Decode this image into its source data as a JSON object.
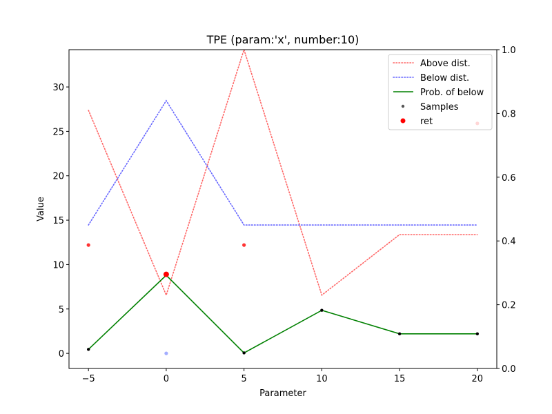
{
  "chart_data": {
    "type": "line",
    "title": "TPE (param:'x', number:10)",
    "xlabel": "Parameter",
    "ylabel": "Value",
    "xlim": [
      -6.25,
      21.25
    ],
    "ylim": [
      -1.7,
      34.2
    ],
    "y2lim": [
      0.0,
      1.0
    ],
    "x_ticks": [
      -5,
      0,
      5,
      10,
      15,
      20
    ],
    "y_ticks": [
      0,
      5,
      10,
      15,
      20,
      25,
      30
    ],
    "y2_ticks": [
      0.0,
      0.2,
      0.4,
      0.6,
      0.8,
      1.0
    ],
    "grid": false,
    "legend_position": "top-right",
    "series": [
      {
        "name": "Above dist.",
        "axis": "right",
        "style": "dotted",
        "color": "#ff6666",
        "x": [
          -5,
          0,
          5,
          10,
          15,
          20
        ],
        "y": [
          0.81,
          0.23,
          1.0,
          0.23,
          0.42,
          0.42
        ]
      },
      {
        "name": "Below dist.",
        "axis": "right",
        "style": "dotted",
        "color": "#6666ff",
        "x": [
          -5,
          0,
          5,
          10,
          15,
          20
        ],
        "y": [
          0.45,
          0.84,
          0.45,
          0.45,
          0.45,
          0.45
        ]
      },
      {
        "name": "Prob. of below",
        "axis": "left",
        "style": "solid",
        "color": "#008000",
        "x": [
          -5,
          0,
          5,
          10,
          15,
          20
        ],
        "y": [
          0.45,
          8.8,
          0.05,
          4.85,
          2.2,
          2.2
        ]
      }
    ],
    "samples": {
      "name": "Samples",
      "color": "#000000",
      "x": [
        -5,
        0,
        5,
        10,
        15,
        20
      ],
      "y": [
        0.45,
        8.8,
        0.05,
        4.85,
        2.2,
        2.2
      ]
    },
    "ret": {
      "name": "ret",
      "color": "#ff0000",
      "x": [
        0
      ],
      "y": [
        8.9
      ]
    },
    "above_points": {
      "color": "#ff0000",
      "x": [
        -5,
        5,
        20
      ],
      "y": [
        12.2,
        12.2,
        25.9
      ]
    },
    "below_points": {
      "color": "#6677ff",
      "x": [
        0
      ],
      "y": [
        0.0
      ]
    },
    "colors": {
      "axis": "#000000",
      "above": "#ff6666",
      "below": "#6666ff",
      "prob": "#008000"
    }
  }
}
